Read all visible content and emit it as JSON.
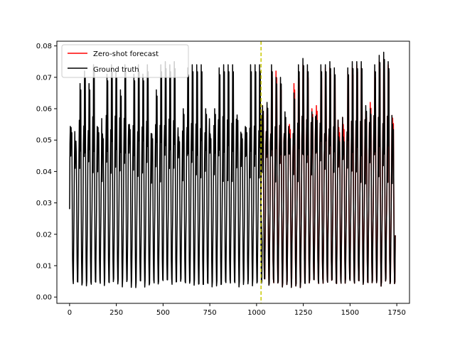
{
  "chart_data": {
    "type": "line",
    "title": "",
    "xlabel": "",
    "ylabel": "",
    "xlim": [
      -68,
      1818
    ],
    "ylim": [
      -0.002,
      0.0815
    ],
    "xticks": [
      0,
      250,
      500,
      750,
      1000,
      1250,
      1500,
      1750
    ],
    "yticks": [
      0.0,
      0.01,
      0.02,
      0.03,
      0.04,
      0.05,
      0.06,
      0.07,
      0.08
    ],
    "xtick_labels": [
      "0",
      "250",
      "500",
      "750",
      "1000",
      "1250",
      "1500",
      "1750"
    ],
    "ytick_labels": [
      "0.00",
      "0.01",
      "0.02",
      "0.03",
      "0.04",
      "0.05",
      "0.06",
      "0.07",
      "0.08"
    ],
    "grid": false,
    "legend_position": "top-left",
    "forecast_start_x": 1024,
    "vline_color": "#c8c800",
    "period": 24,
    "x_end": 1744,
    "peaks_history": [
      0.054,
      0.047,
      0.068,
      0.072,
      0.068,
      0.074,
      0.054,
      0.052,
      0.071,
      0.074,
      0.072,
      0.066,
      0.074,
      0.055,
      0.071,
      0.074,
      0.071,
      0.074,
      0.052,
      0.066,
      0.074,
      0.075,
      0.074,
      0.075,
      0.051,
      0.06,
      0.073,
      0.074,
      0.074,
      0.074,
      0.06,
      0.052,
      0.06,
      0.073,
      0.074,
      0.074,
      0.074,
      0.058,
      0.052,
      0.054,
      0.074,
      0.074,
      0.074
    ],
    "peaks_truth_forecast": [
      0.061,
      0.062,
      0.074,
      0.07,
      0.07,
      0.059,
      0.052,
      0.065,
      0.074,
      0.076,
      0.074,
      0.059,
      0.058,
      0.074,
      0.074,
      0.075,
      0.073,
      0.051,
      0.051,
      0.073,
      0.075,
      0.075,
      0.075,
      0.061,
      0.06,
      0.074,
      0.077,
      0.078,
      0.075,
      0.055
    ],
    "peaks_forecast": [
      0.061,
      0.06,
      0.072,
      0.072,
      0.068,
      0.057,
      0.055,
      0.068,
      0.072,
      0.074,
      0.072,
      0.06,
      0.061,
      0.072,
      0.073,
      0.073,
      0.072,
      0.054,
      0.055,
      0.072,
      0.073,
      0.074,
      0.073,
      0.059,
      0.062,
      0.072,
      0.075,
      0.076,
      0.074,
      0.057
    ],
    "legend": [
      "Zero-shot forecast",
      "Ground truth"
    ],
    "series": [
      {
        "name": "Zero-shot forecast",
        "color": "#ff0000"
      },
      {
        "name": "Ground truth",
        "color": "#000000"
      }
    ]
  }
}
